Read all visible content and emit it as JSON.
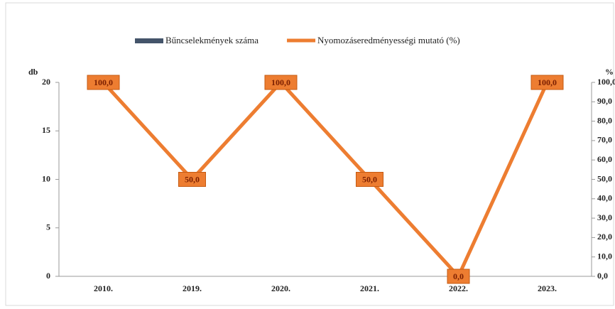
{
  "chart_data": {
    "type": "bar-line",
    "categories": [
      "2010.",
      "2019.",
      "2020.",
      "2021.",
      "2022.",
      "2023."
    ],
    "series": [
      {
        "name": "Bűncselekmények száma",
        "color": "#44546a",
        "type": "bar",
        "values": [
          0,
          0,
          0,
          0,
          0,
          0
        ]
      },
      {
        "name": "Nyomozáseredményességi mutató (%)",
        "color": "#ed7d31",
        "type": "line",
        "axis": "y2",
        "values": [
          100,
          50,
          100,
          50,
          0,
          100
        ],
        "value_labels": [
          "100,0",
          "50,0",
          "100,0",
          "50,0",
          "0,0",
          "100,0"
        ]
      }
    ],
    "y_label": "db",
    "y2_label": "%",
    "ylim": [
      0,
      20
    ],
    "yticks": [
      0,
      5,
      10,
      15,
      20
    ],
    "y2lim": [
      0,
      100
    ],
    "y2ticks": [
      {
        "value": 0,
        "label": "0,0"
      },
      {
        "value": 10,
        "label": "10,0"
      },
      {
        "value": 20,
        "label": "20,0"
      },
      {
        "value": 30,
        "label": "30,0"
      },
      {
        "value": 40,
        "label": "40,0"
      },
      {
        "value": 50,
        "label": "50,0"
      },
      {
        "value": 60,
        "label": "60,0"
      },
      {
        "value": 70,
        "label": "70,0"
      },
      {
        "value": 80,
        "label": "80,0"
      },
      {
        "value": 90,
        "label": "90,0"
      },
      {
        "value": 100,
        "label": "100,0"
      }
    ]
  }
}
